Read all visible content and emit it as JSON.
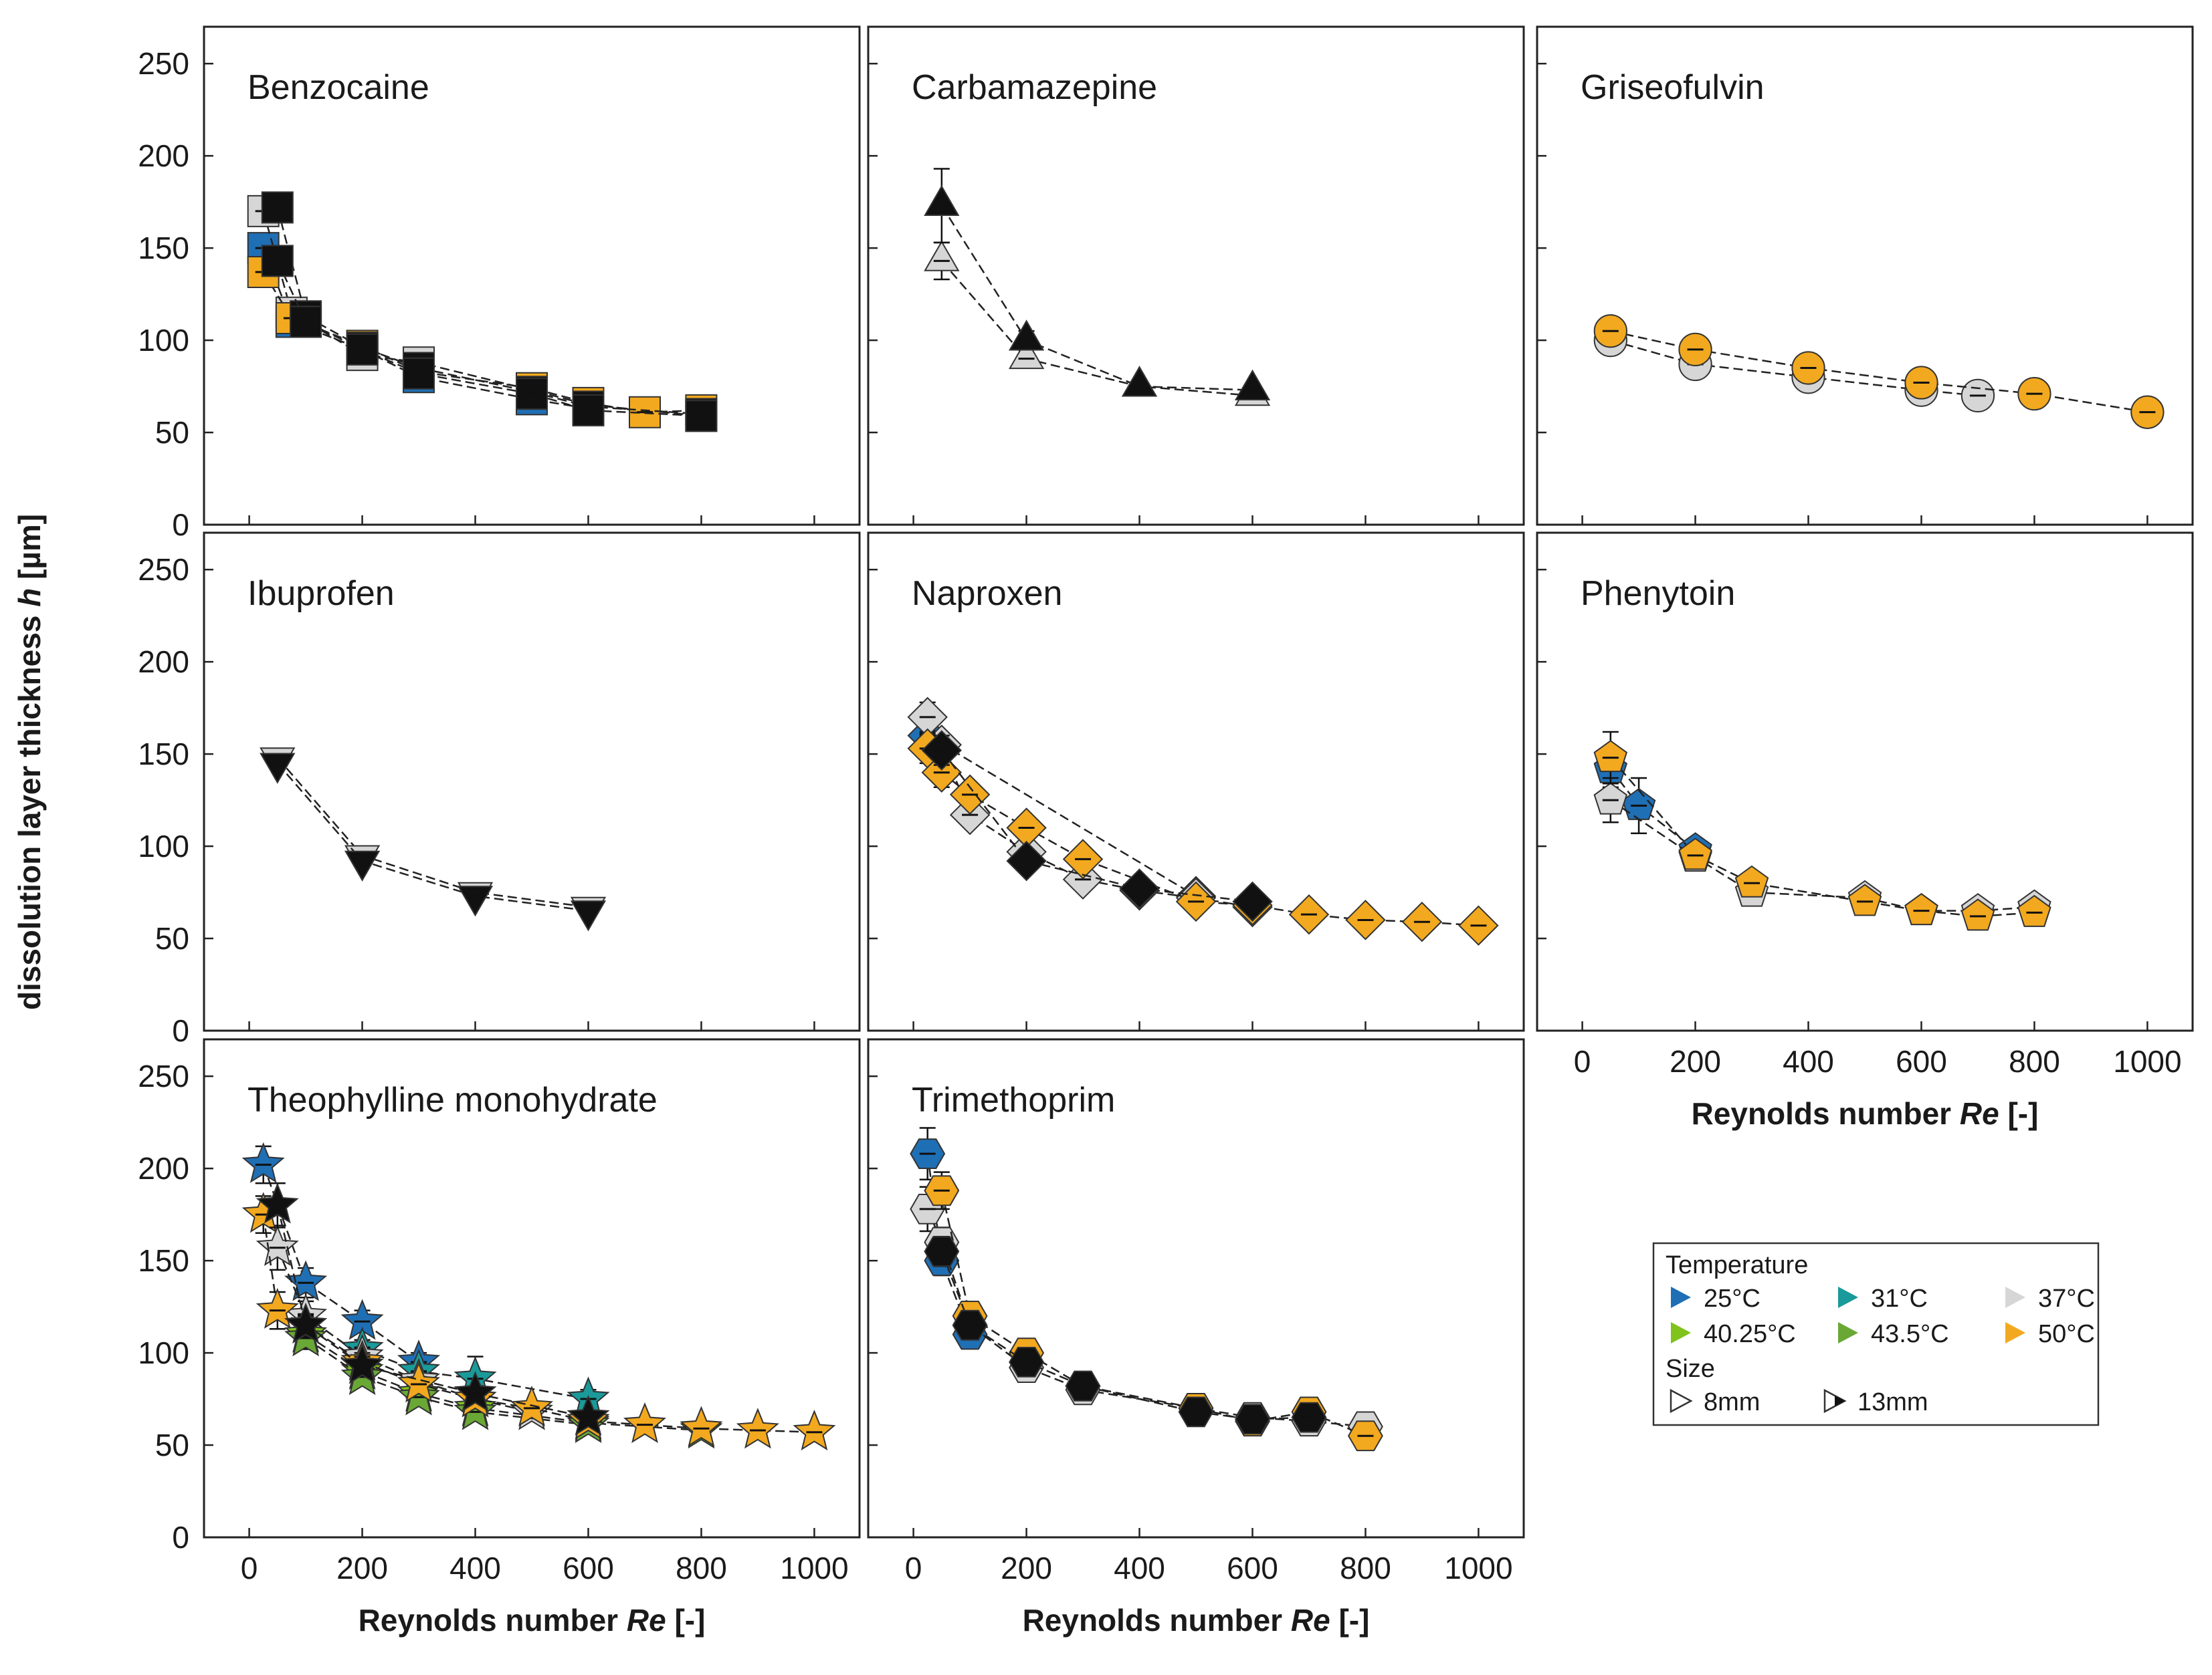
{
  "chart_data": {
    "type": "scatter",
    "ylabel_prefix": "dissolution layer thickness ",
    "ylabel_var": "h",
    "ylabel_unit": " [µm]",
    "xlabel_prefix": "Reynolds number ",
    "xlabel_var": "Re",
    "xlabel_unit": " [-]",
    "xlim": [
      -80,
      1080
    ],
    "ylim": [
      0,
      270
    ],
    "xticks": [
      "0",
      "200",
      "400",
      "600",
      "800",
      "1000"
    ],
    "yticks": [
      "0",
      "50",
      "100",
      "150",
      "200",
      "250"
    ],
    "colors": {
      "25C": "#1f6fb5",
      "31C": "#1a9a9a",
      "37C": "#d6d6d6",
      "40.25C": "#7fc31c",
      "43.5C": "#6aa836",
      "50C": "#f2a91f",
      "13mm": "#111111"
    },
    "panels": [
      {
        "title": "Benzocaine",
        "marker": "square",
        "series": [
          {
            "name": "25°C 8mm",
            "color": "25C",
            "x": [
              25,
              75,
              200,
              300,
              500,
              600
            ],
            "y": [
              150,
              110,
              95,
              80,
              68,
              63
            ],
            "err": [
              5,
              4,
              3,
              3,
              3,
              3
            ]
          },
          {
            "name": "37°C 8mm",
            "color": "37C",
            "x": [
              25,
              75,
              200,
              300,
              500,
              600,
              800
            ],
            "y": [
              170,
              115,
              92,
              88,
              73,
              65,
              59
            ],
            "err": [
              6,
              4,
              3,
              3,
              3,
              3,
              3
            ]
          },
          {
            "name": "50°C 8mm",
            "color": "50C",
            "x": [
              25,
              75,
              200,
              300,
              500,
              600,
              700,
              800
            ],
            "y": [
              137,
              112,
              97,
              83,
              74,
              66,
              61,
              62
            ],
            "err": [
              5,
              4,
              3,
              3,
              3,
              3,
              3,
              3
            ]
          },
          {
            "name": "37°C 13mm",
            "color": "13mm",
            "x": [
              50,
              100,
              200,
              300,
              500,
              600,
              800
            ],
            "y": [
              172,
              113,
              96,
              85,
              72,
              64,
              60
            ],
            "err": [
              6,
              4,
              3,
              3,
              3,
              3,
              3
            ]
          },
          {
            "name": "50°C 13mm",
            "color": "13mm",
            "x": [
              50,
              100,
              200,
              300,
              500,
              600,
              800
            ],
            "y": [
              143,
              110,
              95,
              82,
              71,
              62,
              59
            ],
            "err": [
              5,
              4,
              3,
              3,
              3,
              3,
              3
            ]
          }
        ]
      },
      {
        "title": "Carbamazepine",
        "marker": "triangle-up",
        "series": [
          {
            "name": "37°C 8mm",
            "color": "37C",
            "x": [
              50,
              200,
              400,
              600
            ],
            "y": [
              143,
              90,
              75,
              70
            ],
            "err": [
              10,
              5,
              3,
              3
            ]
          },
          {
            "name": "37°C 13mm",
            "color": "13mm",
            "x": [
              50,
              200,
              400,
              600
            ],
            "y": [
              173,
              100,
              75,
              73
            ],
            "err": [
              20,
              5,
              3,
              3
            ]
          }
        ]
      },
      {
        "title": "Griseofulvin",
        "marker": "circle",
        "series": [
          {
            "name": "37°C 8mm",
            "color": "37C",
            "x": [
              50,
              200,
              400,
              600,
              700
            ],
            "y": [
              100,
              87,
              80,
              73,
              70
            ],
            "err": [
              4,
              4,
              4,
              4,
              4
            ]
          },
          {
            "name": "50°C 8mm",
            "color": "50C",
            "x": [
              50,
              200,
              400,
              600,
              800,
              1000
            ],
            "y": [
              105,
              95,
              85,
              77,
              71,
              61
            ],
            "err": [
              5,
              5,
              4,
              4,
              4,
              3
            ]
          }
        ]
      },
      {
        "title": "Ibuprofen",
        "marker": "triangle-down",
        "series": [
          {
            "name": "37°C 8mm",
            "color": "37C",
            "x": [
              50,
              200,
              400,
              600
            ],
            "y": [
              148,
              95,
              75,
              67
            ],
            "err": [
              3,
              3,
              3,
              3
            ]
          },
          {
            "name": "37°C 13mm",
            "color": "13mm",
            "x": [
              50,
              200,
              400,
              600
            ],
            "y": [
              145,
              92,
              73,
              65
            ],
            "err": [
              3,
              3,
              3,
              3
            ]
          }
        ]
      },
      {
        "title": "Naproxen",
        "marker": "diamond",
        "series": [
          {
            "name": "25°C 8mm",
            "color": "25C",
            "x": [
              25,
              500
            ],
            "y": [
              160,
              73
            ],
            "err": [
              6,
              3
            ]
          },
          {
            "name": "37°C 8mm",
            "color": "37C",
            "x": [
              25,
              50,
              100,
              200,
              300,
              400,
              500,
              600
            ],
            "y": [
              170,
              155,
              117,
              97,
              82,
              76,
              72,
              67
            ],
            "err": [
              8,
              6,
              5,
              4,
              4,
              3,
              3,
              3
            ]
          },
          {
            "name": "50°C 8mm",
            "color": "50C",
            "x": [
              25,
              50,
              100,
              200,
              300,
              500,
              600,
              700,
              800,
              900,
              1000
            ],
            "y": [
              153,
              140,
              128,
              110,
              93,
              70,
              68,
              63,
              60,
              59,
              57
            ],
            "err": [
              8,
              8,
              6,
              5,
              4,
              3,
              3,
              3,
              3,
              3,
              3
            ]
          },
          {
            "name": "37°C 13mm",
            "color": "13mm",
            "x": [
              50,
              200,
              400,
              600
            ],
            "y": [
              152,
              92,
              77,
              70
            ],
            "err": [
              8,
              5,
              4,
              3
            ]
          }
        ]
      },
      {
        "title": "Phenytoin",
        "marker": "pentagon",
        "series": [
          {
            "name": "25°C 8mm",
            "color": "25C",
            "x": [
              50,
              100,
              200
            ],
            "y": [
              142,
              122,
              98
            ],
            "err": [
              10,
              15,
              6
            ]
          },
          {
            "name": "37°C 8mm",
            "color": "37C",
            "x": [
              50,
              200,
              300,
              500,
              600,
              700,
              800
            ],
            "y": [
              125,
              94,
              75,
              72,
              65,
              65,
              67
            ],
            "err": [
              12,
              5,
              4,
              4,
              4,
              4,
              4
            ]
          },
          {
            "name": "50°C 8mm",
            "color": "50C",
            "x": [
              50,
              200,
              300,
              500,
              600,
              700,
              800
            ],
            "y": [
              148,
              95,
              80,
              70,
              65,
              62,
              64
            ],
            "err": [
              14,
              5,
              4,
              4,
              4,
              4,
              4
            ]
          }
        ]
      },
      {
        "title": "Theophylline monohydrate",
        "marker": "star",
        "series": [
          {
            "name": "25°C 8mm",
            "color": "25C",
            "x": [
              25,
              100,
              200,
              300
            ],
            "y": [
              202,
              138,
              117,
              95
            ],
            "err": [
              10,
              8,
              6,
              5
            ]
          },
          {
            "name": "31°C 8mm",
            "color": "31C",
            "x": [
              200,
              300,
              400,
              600
            ],
            "y": [
              102,
              90,
              86,
              75
            ],
            "err": [
              5,
              5,
              12,
              5
            ]
          },
          {
            "name": "37°C 8mm",
            "color": "37C",
            "x": [
              50,
              100,
              200,
              300,
              400,
              500
            ],
            "y": [
              157,
              120,
              98,
              85,
              75,
              68
            ],
            "err": [
              12,
              8,
              5,
              4,
              4,
              3
            ]
          },
          {
            "name": "40.25°C 8mm",
            "color": "40.25C",
            "x": [
              100,
              200,
              300,
              400,
              600,
              800
            ],
            "y": [
              110,
              90,
              78,
              70,
              62,
              58
            ],
            "err": [
              6,
              4,
              4,
              4,
              3,
              3
            ]
          },
          {
            "name": "43.5°C 8mm",
            "color": "43.5C",
            "x": [
              100,
              200,
              300,
              400,
              600
            ],
            "y": [
              108,
              87,
              76,
              68,
              61
            ],
            "err": [
              6,
              4,
              4,
              4,
              3
            ]
          },
          {
            "name": "50°C 8mm",
            "color": "50C",
            "x": [
              25,
              50,
              100,
              200,
              300,
              400,
              500,
              600,
              700,
              800,
              900,
              1000
            ],
            "y": [
              175,
              123,
              115,
              95,
              83,
              75,
              70,
              63,
              61,
              59,
              58,
              57
            ],
            "err": [
              10,
              10,
              6,
              5,
              4,
              4,
              3,
              3,
              3,
              3,
              3,
              3
            ]
          },
          {
            "name": "37°C 13mm",
            "color": "13mm",
            "x": [
              50,
              100,
              200,
              400,
              600
            ],
            "y": [
              180,
              115,
              93,
              78,
              65
            ],
            "err": [
              12,
              6,
              5,
              4,
              3
            ]
          }
        ]
      },
      {
        "title": "Trimethoprim",
        "marker": "hexagon",
        "series": [
          {
            "name": "25°C 8mm",
            "color": "25C",
            "x": [
              25,
              50,
              100
            ],
            "y": [
              208,
              150,
              110
            ],
            "err": [
              14,
              8,
              5
            ]
          },
          {
            "name": "37°C 8mm",
            "color": "37C",
            "x": [
              25,
              50,
              100,
              200,
              300,
              500,
              600,
              700,
              800
            ],
            "y": [
              178,
              160,
              115,
              92,
              80,
              70,
              65,
              63,
              60
            ],
            "err": [
              12,
              8,
              5,
              5,
              4,
              3,
              3,
              3,
              3
            ]
          },
          {
            "name": "50°C 8mm",
            "color": "50C",
            "x": [
              50,
              100,
              200,
              300,
              500,
              600,
              700,
              800
            ],
            "y": [
              188,
              120,
              100,
              82,
              70,
              63,
              68,
              55
            ],
            "err": [
              10,
              6,
              5,
              4,
              4,
              4,
              5,
              3
            ]
          },
          {
            "name": "37°C 13mm",
            "color": "13mm",
            "x": [
              50,
              100,
              200,
              300,
              500,
              600,
              700
            ],
            "y": [
              155,
              115,
              95,
              82,
              68,
              64,
              65
            ],
            "err": [
              8,
              5,
              5,
              4,
              3,
              3,
              3
            ]
          }
        ]
      }
    ],
    "legend": {
      "title_temperature": "Temperature",
      "title_size": "Size",
      "temperature_entries": [
        {
          "label": "25°C",
          "color": "25C"
        },
        {
          "label": "31°C",
          "color": "31C"
        },
        {
          "label": "37°C",
          "color": "37C"
        },
        {
          "label": "40.25°C",
          "color": "40.25C"
        },
        {
          "label": "43.5°C",
          "color": "43.5C"
        },
        {
          "label": "50°C",
          "color": "50C"
        }
      ],
      "size_entries": [
        {
          "label": "8mm",
          "style": "open"
        },
        {
          "label": "13mm",
          "style": "half-filled"
        }
      ]
    }
  }
}
